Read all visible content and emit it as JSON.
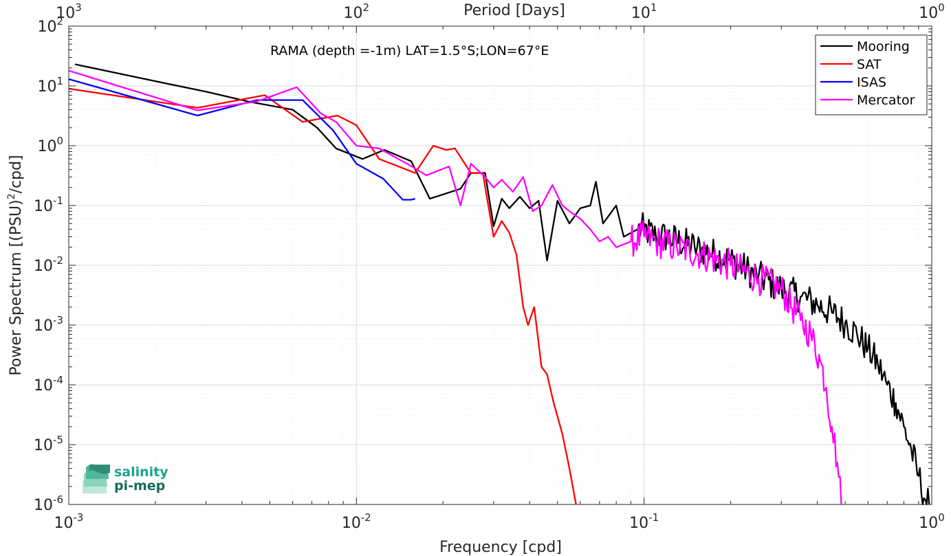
{
  "chart_data": {
    "type": "line",
    "title": "",
    "annotation": "RAMA (depth =-1m) LAT=1.5°S;LON=67°E",
    "xlabel": "Frequency [cpd]",
    "ylabel": "Power Spectrum [(PSU)",
    "ylabel_exponent": "2",
    "ylabel_suffix": "/cpd]",
    "top_xlabel": "Period [Days]",
    "x_scale": "log",
    "y_scale": "log",
    "xlim": [
      0.001,
      1
    ],
    "ylim": [
      1e-06,
      100
    ],
    "grid": true,
    "legend_position": "top-right",
    "x_ticks": [
      {
        "base": "10",
        "exp": "-3"
      },
      {
        "base": "10",
        "exp": "-2"
      },
      {
        "base": "10",
        "exp": "-1"
      },
      {
        "base": "10",
        "exp": "0"
      }
    ],
    "top_x_ticks": [
      {
        "base": "10",
        "exp": "3"
      },
      {
        "base": "10",
        "exp": "2"
      },
      {
        "base": "10",
        "exp": "1"
      },
      {
        "base": "10",
        "exp": "0"
      }
    ],
    "y_ticks": [
      {
        "base": "10",
        "exp": "-6"
      },
      {
        "base": "10",
        "exp": "-5"
      },
      {
        "base": "10",
        "exp": "-4"
      },
      {
        "base": "10",
        "exp": "-3"
      },
      {
        "base": "10",
        "exp": "-2"
      },
      {
        "base": "10",
        "exp": "-1"
      },
      {
        "base": "10",
        "exp": "0"
      },
      {
        "base": "10",
        "exp": "1"
      },
      {
        "base": "10",
        "exp": "2"
      }
    ],
    "series": [
      {
        "name": "Mooring",
        "color": "#000000",
        "anchors": [
          [
            0.00105,
            23
          ],
          [
            0.002,
            12
          ],
          [
            0.003,
            8
          ],
          [
            0.0042,
            5.5
          ],
          [
            0.006,
            4
          ],
          [
            0.0073,
            2
          ],
          [
            0.0085,
            0.9
          ],
          [
            0.0105,
            0.6
          ],
          [
            0.0125,
            0.85
          ],
          [
            0.0155,
            0.55
          ],
          [
            0.018,
            0.13
          ],
          [
            0.023,
            0.19
          ],
          [
            0.025,
            0.35
          ],
          [
            0.028,
            0.35
          ],
          [
            0.03,
            0.045
          ],
          [
            0.032,
            0.13
          ],
          [
            0.034,
            0.09
          ],
          [
            0.037,
            0.14
          ],
          [
            0.04,
            0.09
          ],
          [
            0.043,
            0.12
          ],
          [
            0.046,
            0.012
          ],
          [
            0.05,
            0.12
          ],
          [
            0.055,
            0.05
          ],
          [
            0.06,
            0.09
          ],
          [
            0.065,
            0.1
          ],
          [
            0.068,
            0.25
          ],
          [
            0.072,
            0.05
          ],
          [
            0.08,
            0.1
          ],
          [
            0.085,
            0.03
          ],
          [
            0.095,
            0.04
          ],
          [
            0.1,
            0.04
          ],
          [
            0.11,
            0.03
          ],
          [
            0.12,
            0.03
          ],
          [
            0.15,
            0.02
          ],
          [
            0.2,
            0.012
          ],
          [
            0.25,
            0.0065
          ],
          [
            0.3,
            0.004
          ],
          [
            0.35,
            0.003
          ],
          [
            0.4,
            0.0022
          ],
          [
            0.45,
            0.0016
          ],
          [
            0.5,
            0.0011
          ],
          [
            0.55,
            0.0007
          ],
          [
            0.6,
            0.0004
          ],
          [
            0.65,
            0.00022
          ],
          [
            0.7,
            0.0001
          ],
          [
            0.75,
            5e-05
          ],
          [
            0.8,
            2e-05
          ],
          [
            0.85,
            8e-06
          ],
          [
            0.9,
            3e-06
          ],
          [
            0.95,
            1.2e-06
          ],
          [
            0.98,
            1e-06
          ]
        ]
      },
      {
        "name": "SAT",
        "color": "#ff0000",
        "anchors": [
          [
            0.001,
            9
          ],
          [
            0.0028,
            4.3
          ],
          [
            0.0048,
            7
          ],
          [
            0.0065,
            2.5
          ],
          [
            0.0086,
            3.2
          ],
          [
            0.01,
            2.2
          ],
          [
            0.012,
            0.6
          ],
          [
            0.016,
            0.35
          ],
          [
            0.0185,
            1.0
          ],
          [
            0.0205,
            0.85
          ],
          [
            0.022,
            0.9
          ],
          [
            0.025,
            0.35
          ],
          [
            0.0275,
            0.35
          ],
          [
            0.03,
            0.03
          ],
          [
            0.032,
            0.055
          ],
          [
            0.034,
            0.035
          ],
          [
            0.036,
            0.015
          ],
          [
            0.038,
            0.002
          ],
          [
            0.0395,
            0.001
          ],
          [
            0.0415,
            0.002
          ],
          [
            0.044,
            0.0002
          ],
          [
            0.046,
            0.00015
          ],
          [
            0.0485,
            5e-05
          ],
          [
            0.052,
            1.5e-05
          ],
          [
            0.055,
            4e-06
          ],
          [
            0.058,
            1e-06
          ]
        ]
      },
      {
        "name": "ISAS",
        "color": "#0000ff",
        "anchors": [
          [
            0.001,
            13
          ],
          [
            0.0028,
            3.2
          ],
          [
            0.0045,
            5.8
          ],
          [
            0.0065,
            5.8
          ],
          [
            0.0083,
            1.8
          ],
          [
            0.01,
            0.5
          ],
          [
            0.0124,
            0.28
          ],
          [
            0.0145,
            0.125
          ],
          [
            0.0155,
            0.125
          ],
          [
            0.016,
            0.13
          ]
        ]
      },
      {
        "name": "Mercator",
        "color": "#ff00ff",
        "anchors": [
          [
            0.001,
            18
          ],
          [
            0.0028,
            3.9
          ],
          [
            0.0045,
            5.5
          ],
          [
            0.0062,
            9.5
          ],
          [
            0.0075,
            3.5
          ],
          [
            0.0085,
            2.5
          ],
          [
            0.01,
            1.0
          ],
          [
            0.012,
            0.9
          ],
          [
            0.015,
            0.5
          ],
          [
            0.0175,
            0.32
          ],
          [
            0.021,
            0.45
          ],
          [
            0.023,
            0.1
          ],
          [
            0.025,
            0.5
          ],
          [
            0.028,
            0.3
          ],
          [
            0.03,
            0.2
          ],
          [
            0.032,
            0.27
          ],
          [
            0.035,
            0.17
          ],
          [
            0.038,
            0.3
          ],
          [
            0.041,
            0.08
          ],
          [
            0.044,
            0.1
          ],
          [
            0.048,
            0.22
          ],
          [
            0.052,
            0.1
          ],
          [
            0.055,
            0.08
          ],
          [
            0.06,
            0.06
          ],
          [
            0.065,
            0.04
          ],
          [
            0.07,
            0.025
          ],
          [
            0.075,
            0.03
          ],
          [
            0.08,
            0.02
          ],
          [
            0.09,
            0.025
          ],
          [
            0.1,
            0.03
          ],
          [
            0.11,
            0.025
          ],
          [
            0.13,
            0.02
          ],
          [
            0.16,
            0.015
          ],
          [
            0.2,
            0.01
          ],
          [
            0.25,
            0.006
          ],
          [
            0.3,
            0.004
          ],
          [
            0.35,
            0.0012
          ],
          [
            0.38,
            0.0007
          ],
          [
            0.41,
            0.00025
          ],
          [
            0.43,
            9e-05
          ],
          [
            0.45,
            2e-05
          ],
          [
            0.47,
            5e-06
          ],
          [
            0.485,
            1e-06
          ]
        ]
      }
    ]
  },
  "logo": {
    "line1": "salinity",
    "line2": "pi-mep"
  }
}
